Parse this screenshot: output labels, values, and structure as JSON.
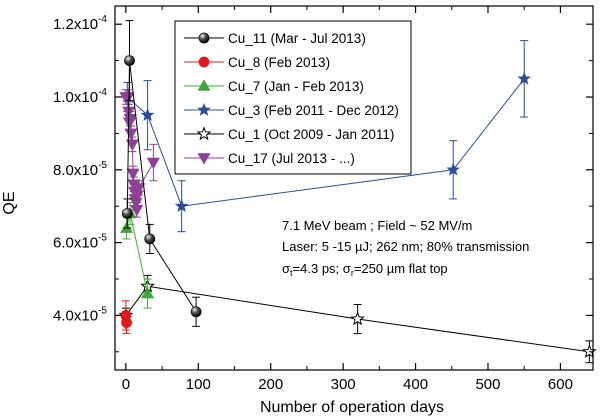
{
  "chart_data": {
    "type": "scatter",
    "xlabel": "Number of operation days",
    "ylabel": "QE",
    "xlim": [
      -15,
      645
    ],
    "ylim": [
      2.5e-05,
      0.000125
    ],
    "xticks": [
      0,
      100,
      200,
      300,
      400,
      500,
      600
    ],
    "yticks": [
      {
        "value": 4e-05,
        "mant": "4.0x10",
        "exp": "-5"
      },
      {
        "value": 6e-05,
        "mant": "6.0x10",
        "exp": "-5"
      },
      {
        "value": 8e-05,
        "mant": "8.0x10",
        "exp": "-5"
      },
      {
        "value": 0.0001,
        "mant": "1.0x10",
        "exp": "-4"
      },
      {
        "value": 0.00012,
        "mant": "1.2x10",
        "exp": "-4"
      }
    ],
    "grid": false,
    "legend_position": "top-center",
    "series": [
      {
        "name": "Cu_11 (Mar - Jul 2013)",
        "color": "#000000",
        "marker": "ball",
        "points": [
          {
            "x": 2,
            "y": 6.8e-05,
            "err": 4e-06
          },
          {
            "x": 5,
            "y": 0.00011,
            "err": 1.1e-05
          },
          {
            "x": 33,
            "y": 6.1e-05,
            "err": 4e-06
          },
          {
            "x": 97,
            "y": 4.1e-05,
            "err": 4e-06
          }
        ]
      },
      {
        "name": "Cu_8 (Feb 2013)",
        "color": "#e0191f",
        "marker": "circle",
        "points": [
          {
            "x": 0,
            "y": 4e-05,
            "err": 4e-06
          },
          {
            "x": 1,
            "y": 3.8e-05,
            "err": 3e-06
          }
        ]
      },
      {
        "name": "Cu_7 (Jan - Feb 2013)",
        "color": "#3daa35",
        "marker": "triangle-up",
        "points": [
          {
            "x": 1,
            "y": 6.4e-05,
            "err": 3e-06
          },
          {
            "x": 6,
            "y": 6.8e-05,
            "err": 3e-06
          },
          {
            "x": 30,
            "y": 4.6e-05,
            "err": 4e-06
          }
        ]
      },
      {
        "name": "Cu_3 (Feb 2011 - Dec 2012)",
        "color": "#2a4d9c",
        "marker": "star",
        "points": [
          {
            "x": 2,
            "y": 0.0001,
            "err": 4e-06
          },
          {
            "x": 30,
            "y": 9.5e-05,
            "err": 9.5e-06
          },
          {
            "x": 77,
            "y": 7e-05,
            "err": 7e-06
          },
          {
            "x": 452,
            "y": 8e-05,
            "err": 8e-06
          },
          {
            "x": 550,
            "y": 0.000105,
            "err": 1.05e-05
          }
        ]
      },
      {
        "name": "Cu_1 (Oct 2009 - Jan 2011)",
        "color": "#000000",
        "marker": "star-open",
        "points": [
          {
            "x": 0,
            "y": 4e-05,
            "err": 2e-06
          },
          {
            "x": 30,
            "y": 4.8e-05,
            "err": 3e-06
          },
          {
            "x": 320,
            "y": 3.9e-05,
            "err": 4e-06
          },
          {
            "x": 640,
            "y": 3e-05,
            "err": 3e-06
          }
        ]
      },
      {
        "name": "Cu_17 (Jul 2013 - ...)",
        "color": "#8e3f96",
        "marker": "triangle-down",
        "points": [
          {
            "x": 0,
            "y": 0.0001,
            "err": 2e-06
          },
          {
            "x": 3,
            "y": 0.0001,
            "err": 2e-06
          },
          {
            "x": 4,
            "y": 9.6e-05,
            "err": 2e-06
          },
          {
            "x": 5,
            "y": 9.3e-05,
            "err": 2e-06
          },
          {
            "x": 6,
            "y": 9.4e-05,
            "err": 2e-06
          },
          {
            "x": 7,
            "y": 9e-05,
            "err": 2e-06
          },
          {
            "x": 9,
            "y": 8.7e-05,
            "err": 2e-06
          },
          {
            "x": 10,
            "y": 7.9e-05,
            "err": 2e-06
          },
          {
            "x": 11,
            "y": 7.6e-05,
            "err": 2e-06
          },
          {
            "x": 12,
            "y": 7.4e-05,
            "err": 2e-06
          },
          {
            "x": 13,
            "y": 7.2e-05,
            "err": 2e-06
          },
          {
            "x": 14,
            "y": 7.1e-05,
            "err": 2e-06
          },
          {
            "x": 15,
            "y": 6.9e-05,
            "err": 2e-06
          },
          {
            "x": 16,
            "y": 7.3e-05,
            "err": 2e-06
          },
          {
            "x": 18,
            "y": 7.5e-05,
            "err": 2e-06
          },
          {
            "x": 38,
            "y": 8.2e-05,
            "err": 5e-06
          }
        ]
      }
    ],
    "annotations": {
      "line1": "7.1 MeV beam ; Field ~ 52 MV/m",
      "line2": "Laser: 5 -15 µJ; 262 nm; 80% transmission",
      "line3": {
        "s1": "σ",
        "s1sub": "t",
        "s2": "=4.3 ps; ",
        "s3": "σ",
        "s3sub": "r",
        "s4": "=250 µm flat top"
      }
    }
  }
}
